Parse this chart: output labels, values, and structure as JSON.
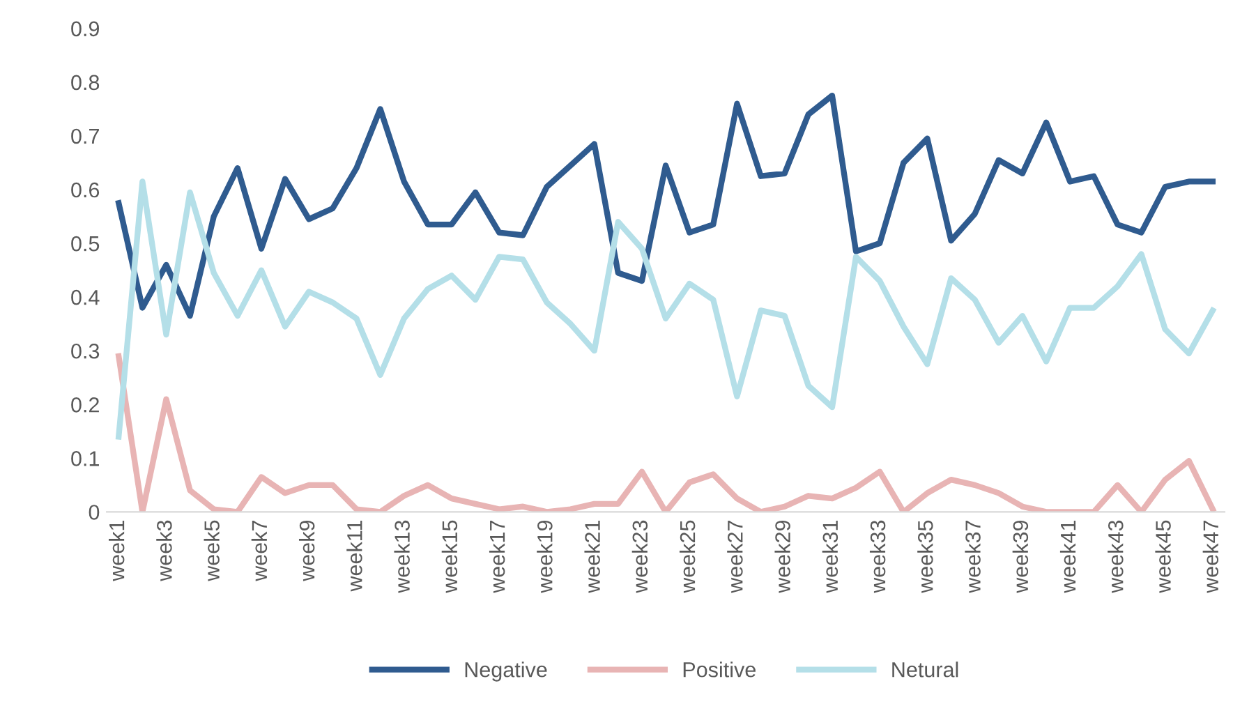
{
  "chart_data": {
    "type": "line",
    "categories": [
      "week1",
      null,
      "week3",
      null,
      "week5",
      null,
      "week7",
      null,
      "week9",
      null,
      "week11",
      null,
      "week13",
      null,
      "week15",
      null,
      "week17",
      null,
      "week19",
      null,
      "week21",
      null,
      "week23",
      null,
      "week25",
      null,
      "week27",
      null,
      "week29",
      null,
      "week31",
      null,
      "week33",
      null,
      "week35",
      null,
      "week37",
      null,
      "week39",
      null,
      "week41",
      null,
      "week43",
      null,
      "week45",
      null,
      "week47"
    ],
    "series": [
      {
        "name": "Negative",
        "color": "#2f5b8f",
        "values": [
          0.575,
          0.38,
          0.46,
          0.365,
          0.55,
          0.64,
          0.49,
          0.62,
          0.545,
          0.565,
          0.64,
          0.75,
          0.615,
          0.535,
          0.535,
          0.595,
          0.52,
          0.515,
          0.605,
          0.645,
          0.685,
          0.445,
          0.43,
          0.645,
          0.52,
          0.535,
          0.76,
          0.625,
          0.63,
          0.74,
          0.775,
          0.485,
          0.5,
          0.65,
          0.695,
          0.505,
          0.555,
          0.655,
          0.63,
          0.725,
          0.615,
          0.625,
          0.535,
          0.52,
          0.605,
          0.615,
          0.615
        ]
      },
      {
        "name": "Positive",
        "color": "#e8b4b4",
        "values": [
          0.29,
          0.0,
          0.21,
          0.04,
          0.005,
          0.0,
          0.065,
          0.035,
          0.05,
          0.05,
          0.005,
          0.0,
          0.03,
          0.05,
          0.025,
          0.015,
          0.005,
          0.01,
          0.0,
          0.005,
          0.015,
          0.015,
          0.075,
          0.0,
          0.055,
          0.07,
          0.025,
          0.0,
          0.01,
          0.03,
          0.025,
          0.045,
          0.075,
          0.0,
          0.035,
          0.06,
          0.05,
          0.035,
          0.01,
          0.0,
          0.0,
          0.0,
          0.05,
          0.0,
          0.06,
          0.095,
          0.005
        ]
      },
      {
        "name": "Netural",
        "color": "#b4dfe8",
        "values": [
          0.14,
          0.615,
          0.33,
          0.595,
          0.445,
          0.365,
          0.45,
          0.345,
          0.41,
          0.39,
          0.36,
          0.255,
          0.36,
          0.415,
          0.44,
          0.395,
          0.475,
          0.47,
          0.39,
          0.35,
          0.3,
          0.54,
          0.49,
          0.36,
          0.425,
          0.395,
          0.215,
          0.375,
          0.365,
          0.235,
          0.195,
          0.475,
          0.43,
          0.345,
          0.275,
          0.435,
          0.395,
          0.315,
          0.365,
          0.28,
          0.38,
          0.38,
          0.42,
          0.48,
          0.34,
          0.295,
          0.375
        ]
      }
    ],
    "ylim": [
      0,
      0.9
    ],
    "yticks": [
      0,
      0.1,
      0.2,
      0.3,
      0.4,
      0.5,
      0.6,
      0.7,
      0.8,
      0.9
    ],
    "grid": false,
    "legend": "bottom",
    "marker": "none",
    "line_style": "solid"
  }
}
